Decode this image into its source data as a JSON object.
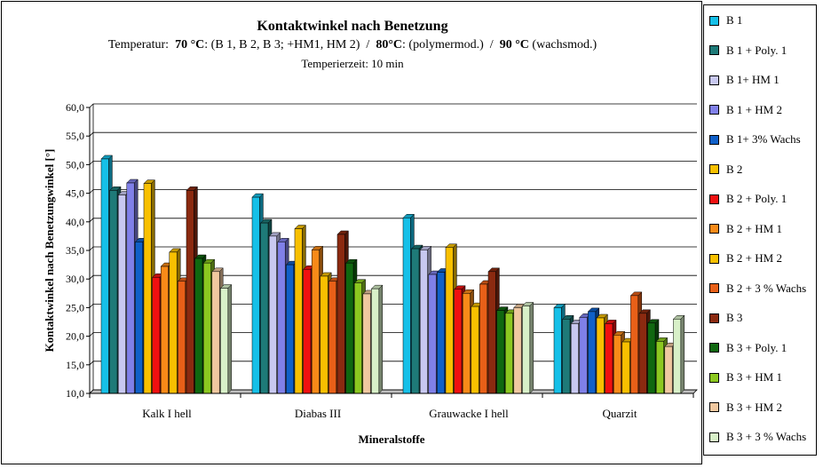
{
  "chart_data": {
    "type": "bar",
    "title": "Kontaktwinkel nach Benetzung",
    "subtitle": {
      "prefix": "Temperatur:  ",
      "t1": "70 °C",
      "t1_text": ": (B 1, B 2, B 3; +HM1, HM 2)  /  ",
      "t2": "80°C",
      "t2_text": ": (polymermod.)  /  ",
      "t3": "90 °C",
      "t3_text": " (wachsmod.)"
    },
    "subtitle2": "Temperierzeit:  10 min",
    "xlabel": "Mineralstoffe",
    "ylabel": "Kontaktwinkel nach Benetzungwinkel [°]",
    "ylim": [
      10,
      60
    ],
    "yticks": [
      "10,0",
      "15,0",
      "20,0",
      "25,0",
      "30,0",
      "35,0",
      "40,0",
      "45,0",
      "50,0",
      "55,0",
      "60,0"
    ],
    "grid": true,
    "legend_position": "right",
    "categories": [
      "Kalk I  hell",
      "Diabas III",
      "Grauwacke I hell",
      "Quarzit"
    ],
    "series": [
      {
        "name": "B 1",
        "color": "#16C0E8",
        "values": [
          51.0,
          44.3,
          40.7,
          25.0
        ]
      },
      {
        "name": "B 1 + Poly. 1",
        "color": "#1E7A78",
        "values": [
          45.5,
          39.8,
          35.3,
          23.0
        ]
      },
      {
        "name": "B 1+ HM 1",
        "color": "#C8C8F0",
        "values": [
          44.7,
          37.5,
          35.1,
          22.2
        ]
      },
      {
        "name": "B 1 + HM 2",
        "color": "#8080E8",
        "values": [
          46.8,
          36.5,
          30.8,
          23.3
        ]
      },
      {
        "name": "B 1+ 3% Wachs",
        "color": "#1060C8",
        "values": [
          36.5,
          32.5,
          31.2,
          24.3
        ]
      },
      {
        "name": "B 2",
        "color": "#F8C000",
        "values": [
          46.7,
          38.8,
          35.5,
          23.2
        ]
      },
      {
        "name": "B 2 + Poly. 1",
        "color": "#F01010",
        "values": [
          30.3,
          31.7,
          28.2,
          22.2
        ]
      },
      {
        "name": "B 2 + HM 1",
        "color": "#F88A18",
        "values": [
          32.2,
          35.1,
          27.5,
          20.2
        ]
      },
      {
        "name": "B 2 + HM 2",
        "color": "#F8C000",
        "values": [
          34.7,
          30.5,
          25.2,
          19.0
        ]
      },
      {
        "name": "B 2 + 3 % Wachs",
        "color": "#E86018",
        "values": [
          29.6,
          29.6,
          29.1,
          27.1
        ]
      },
      {
        "name": "B 3",
        "color": "#8B2A10",
        "values": [
          45.5,
          37.8,
          31.3,
          24.0
        ]
      },
      {
        "name": "B 3 + Poly. 1",
        "color": "#106810",
        "values": [
          33.6,
          32.8,
          24.5,
          22.3
        ]
      },
      {
        "name": "B 3 + HM 1",
        "color": "#8CC820",
        "values": [
          32.8,
          29.3,
          24.0,
          19.1
        ]
      },
      {
        "name": "B 3 + HM 2",
        "color": "#F0C8A0",
        "values": [
          31.3,
          27.4,
          25.0,
          18.2
        ]
      },
      {
        "name": "B 3 + 3 % Wachs",
        "color": "#D8F0C8",
        "values": [
          28.4,
          28.3,
          25.3,
          23.0
        ]
      }
    ]
  }
}
